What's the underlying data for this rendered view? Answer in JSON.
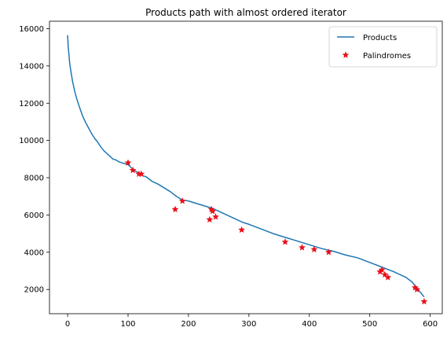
{
  "chart_data": {
    "type": "line",
    "title": "Products path with almost ordered iterator",
    "xlabel": "",
    "ylabel": "",
    "xlim": [
      -30,
      620
    ],
    "ylim": [
      700,
      16400
    ],
    "x_ticks": [
      0,
      100,
      200,
      300,
      400,
      500,
      600
    ],
    "y_ticks": [
      2000,
      4000,
      6000,
      8000,
      10000,
      12000,
      14000,
      16000
    ],
    "grid": false,
    "legend_placement": "top-right",
    "series": [
      {
        "name": "Products",
        "kind": "line",
        "color": "#1f77b4",
        "x": [
          0,
          1,
          2,
          3,
          4,
          5,
          6,
          7,
          8,
          10,
          12,
          15,
          18,
          20,
          25,
          30,
          35,
          40,
          45,
          50,
          55,
          60,
          65,
          70,
          75,
          80,
          85,
          90,
          95,
          100,
          105,
          110,
          115,
          120,
          125,
          130,
          140,
          150,
          160,
          170,
          180,
          190,
          200,
          210,
          220,
          230,
          240,
          250,
          260,
          270,
          280,
          290,
          300,
          320,
          340,
          360,
          380,
          400,
          420,
          440,
          460,
          480,
          500,
          520,
          540,
          560,
          570,
          580,
          585,
          590
        ],
        "y": [
          15650,
          15000,
          14700,
          14300,
          14000,
          13800,
          13600,
          13400,
          13200,
          12900,
          12600,
          12250,
          11950,
          11750,
          11300,
          10950,
          10650,
          10350,
          10100,
          9900,
          9650,
          9450,
          9300,
          9150,
          9000,
          8950,
          8850,
          8800,
          8750,
          8700,
          8550,
          8400,
          8300,
          8200,
          8100,
          8050,
          7800,
          7650,
          7450,
          7250,
          7000,
          6800,
          6750,
          6650,
          6550,
          6450,
          6350,
          6200,
          6050,
          5900,
          5750,
          5600,
          5500,
          5250,
          5000,
          4800,
          4600,
          4400,
          4200,
          4050,
          3850,
          3700,
          3450,
          3200,
          2950,
          2650,
          2400,
          2000,
          1800,
          1600
        ]
      },
      {
        "name": "Palindromes",
        "kind": "scatter",
        "color": "#e8101a",
        "x": [
          100,
          108,
          118,
          122,
          178,
          190,
          235,
          238,
          240,
          245,
          288,
          360,
          388,
          408,
          432,
          517,
          520,
          525,
          530,
          575,
          578,
          590
        ],
        "y": [
          8800,
          8400,
          8200,
          8200,
          6300,
          6750,
          5750,
          6300,
          6200,
          5900,
          5200,
          4550,
          4250,
          4150,
          4000,
          2950,
          3050,
          2800,
          2650,
          2100,
          2000,
          1350
        ]
      }
    ]
  }
}
